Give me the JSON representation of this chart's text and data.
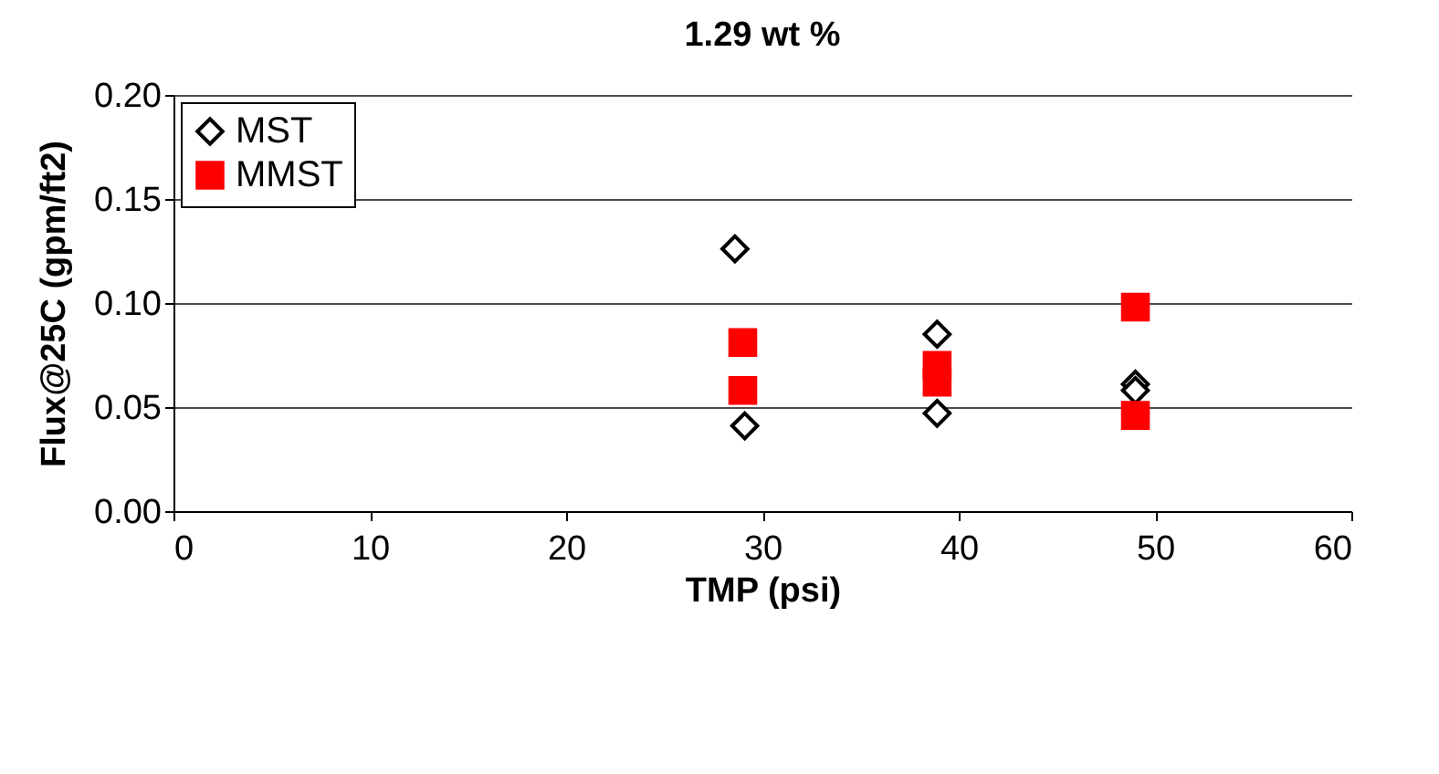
{
  "chart_data": {
    "type": "scatter",
    "title": "1.29 wt %",
    "xlabel": "TMP (psi)",
    "ylabel": "Flux@25C (gpm/ft2)",
    "series": [
      {
        "name": "MST",
        "color": "#000000",
        "marker": "diamond",
        "x": [
          28.6,
          29.1,
          38.9,
          38.9,
          49.0,
          49.0
        ],
        "values": [
          0.126,
          0.041,
          0.085,
          0.047,
          0.061,
          0.058
        ]
      },
      {
        "name": "MMST",
        "color": "#ff0000",
        "marker": "square",
        "x": [
          29,
          29,
          38.9,
          38.9,
          49.0,
          49.0
        ],
        "values": [
          0.081,
          0.058,
          0.07,
          0.062,
          0.098,
          0.046
        ]
      }
    ],
    "xlim": [
      0,
      60
    ],
    "xticks": [
      0,
      10,
      20,
      30,
      40,
      50,
      60
    ],
    "ylim": [
      0,
      0.2
    ],
    "yticks": [
      {
        "value": 0,
        "label": "0.00"
      },
      0.05,
      {
        "value": 0.1,
        "label": "0.10"
      },
      0.15,
      {
        "value": 0.2,
        "label": "0.20"
      }
    ],
    "grid": "y",
    "legend": "top left"
  }
}
